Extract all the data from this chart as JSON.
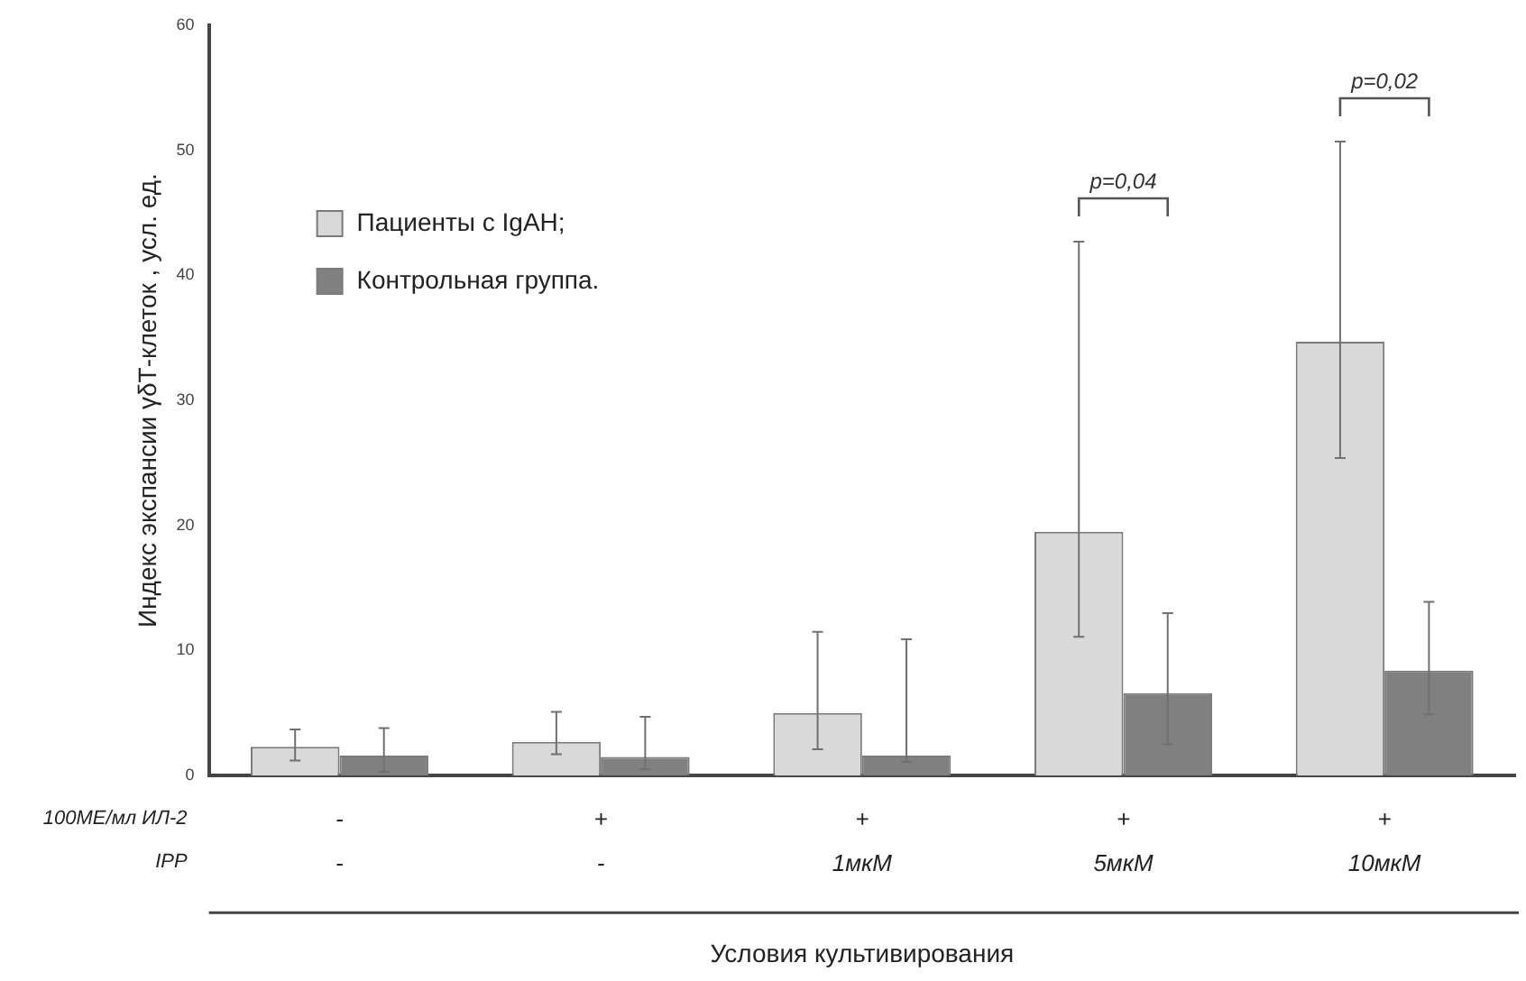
{
  "chart_data": {
    "type": "bar",
    "ylabel": "Индекс экспансии γδТ-клеток , усл. ед.",
    "xlabel": "Условия культивирования",
    "categories": [
      "-\n-",
      "+\n-",
      "+\n1мкМ",
      "+\n5мкМ",
      "+\n10мкМ"
    ],
    "series": [
      {
        "name": "Пациенты с IgAH;",
        "color": "#d9d9d9",
        "values": [
          2.3,
          2.7,
          5.0,
          19.5,
          34.7
        ],
        "errors": [
          [
            1.2,
            3.7
          ],
          [
            1.7,
            5.1
          ],
          [
            2.1,
            11.5
          ],
          [
            11.1,
            42.7
          ],
          [
            25.4,
            50.7
          ]
        ]
      },
      {
        "name": "Контрольная группа.",
        "color": "#808080",
        "values": [
          1.6,
          1.5,
          1.6,
          6.6,
          8.4
        ],
        "errors": [
          [
            0.3,
            3.8
          ],
          [
            0.5,
            4.7
          ],
          [
            1.1,
            10.9
          ],
          [
            2.5,
            13.0
          ],
          [
            4.9,
            13.9
          ]
        ]
      }
    ],
    "annotations": [
      "100МЕ/мл ИЛ-2",
      "IPP",
      "p=0,04",
      "p=0,02"
    ],
    "ylim": [
      0,
      60
    ],
    "yticks": [
      0,
      10,
      20,
      30,
      40,
      50,
      60
    ],
    "grid": false,
    "legend": "top left"
  }
}
